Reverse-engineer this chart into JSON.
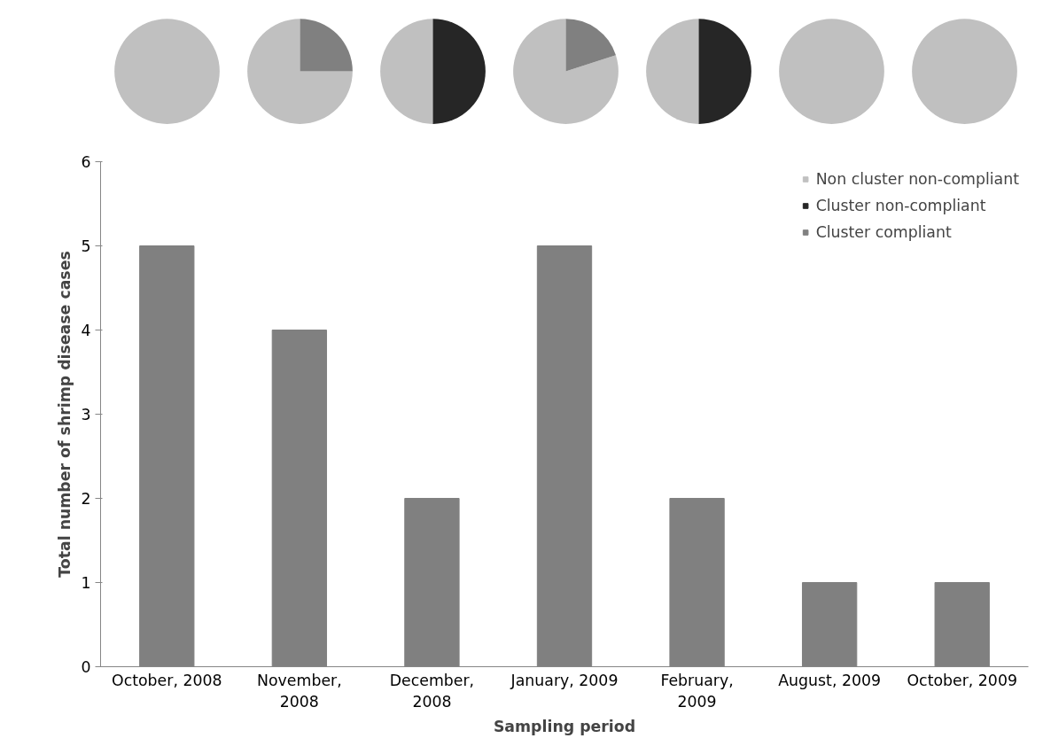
{
  "chart_data": [
    {
      "type": "pie",
      "categories": [
        "Non cluster non-compliant",
        "Cluster non-compliant",
        "Cluster compliant"
      ],
      "values": [
        100,
        0,
        0
      ],
      "colors": [
        "#c0c0c0",
        "#262626",
        "#808080"
      ],
      "legend": "bottom right"
    },
    {
      "type": "pie",
      "categories": [
        null,
        null,
        null
      ],
      "values": [
        75,
        0,
        25
      ],
      "colors": [
        "#c0c0c0",
        "#262626",
        "#808080"
      ]
    },
    {
      "type": "pie",
      "categories": [
        null,
        null,
        null
      ],
      "values": [
        50,
        50,
        0
      ],
      "colors": [
        "#c0c0c0",
        "#262626",
        "#808080"
      ]
    },
    {
      "type": "pie",
      "categories": [
        null,
        null,
        null
      ],
      "values": [
        80,
        0,
        20
      ],
      "colors": [
        "#c0c0c0",
        "#262626",
        "#808080"
      ]
    },
    {
      "type": "pie",
      "categories": [
        null,
        null,
        null
      ],
      "values": [
        50,
        50,
        0
      ],
      "colors": [
        "#c0c0c0",
        "#262626",
        "#808080"
      ]
    },
    {
      "type": "pie",
      "categories": [
        null,
        null,
        null
      ],
      "values": [
        100,
        0,
        0
      ],
      "colors": [
        "#c0c0c0",
        "#262626",
        "#808080"
      ]
    },
    {
      "type": "pie",
      "categories": [
        null,
        null,
        null
      ],
      "values": [
        100,
        0,
        0
      ],
      "colors": [
        "#c0c0c0",
        "#262626",
        "#808080"
      ]
    },
    {
      "type": "bar",
      "xlabel": "Sampling period",
      "ylabel": "Total number of shrimp disease cases",
      "categories": [
        "October, 2008",
        "November, 2008",
        "December, 2008",
        "January, 2009",
        "February, 2009",
        "August, 2009",
        "October, 2009"
      ],
      "values": [
        5,
        4,
        2,
        5,
        2,
        1,
        1
      ],
      "color": "#808080",
      "ylim": [
        0,
        6
      ],
      "yticks": [
        0,
        1,
        2,
        3,
        4,
        5,
        6
      ],
      "grid": false
    }
  ]
}
